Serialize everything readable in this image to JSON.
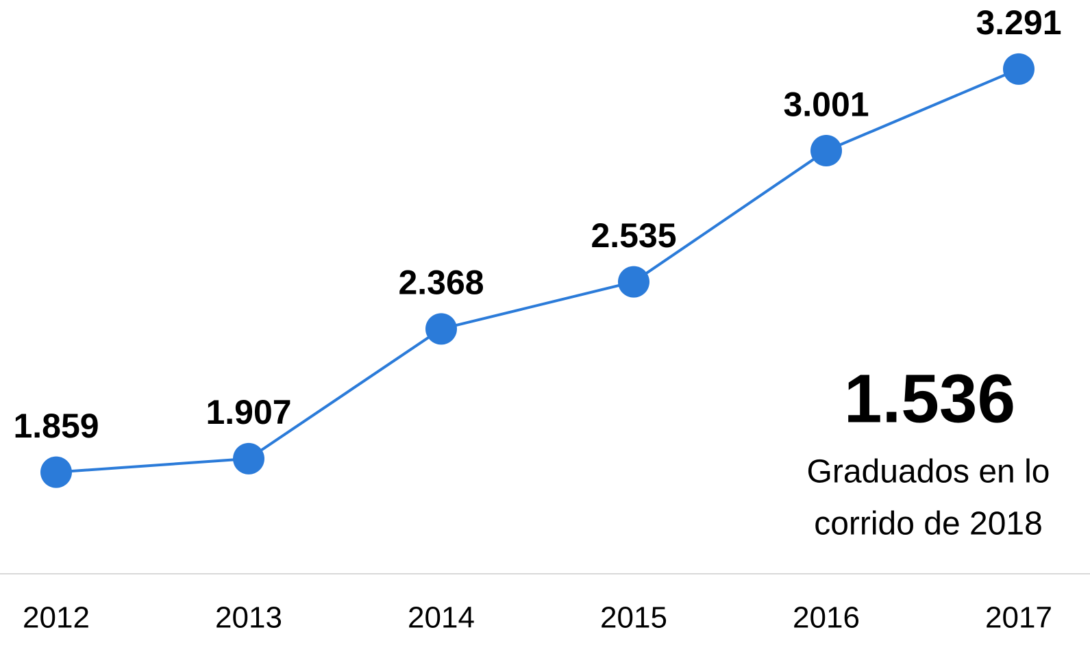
{
  "chart_data": {
    "type": "line",
    "categories": [
      "2012",
      "2013",
      "2014",
      "2015",
      "2016",
      "2017"
    ],
    "series": [
      {
        "color": "#2b7bd9",
        "values": [
          1859,
          1907,
          2368,
          2535,
          3001,
          3291
        ],
        "value_labels": [
          "1.859",
          "1.907",
          "2.368",
          "2.535",
          "3.001",
          "3.291"
        ]
      }
    ],
    "ylim": [
      1700,
      3400
    ],
    "highlight": {
      "value": 1536,
      "label": "1.536",
      "caption": [
        "Graduados en lo",
        "corrido de 2018"
      ]
    }
  }
}
